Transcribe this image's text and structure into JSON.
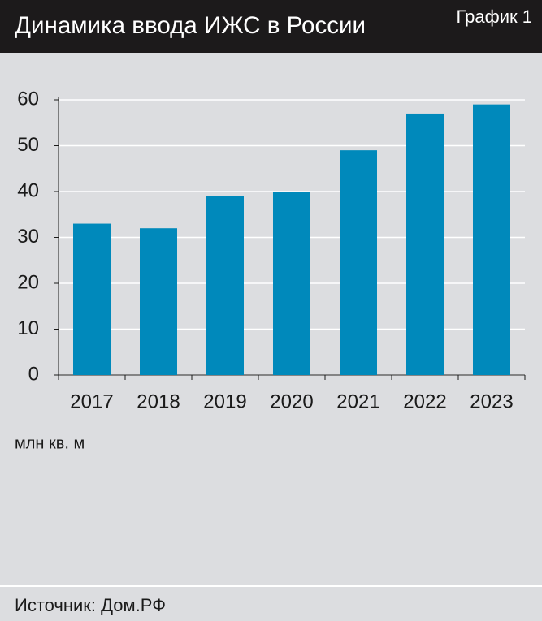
{
  "chart_data": {
    "type": "bar",
    "title": "Динамика ввода ИЖС в России",
    "label": "График 1",
    "categories": [
      "2017",
      "2018",
      "2019",
      "2020",
      "2021",
      "2022",
      "2023"
    ],
    "values": [
      33,
      32,
      39,
      40,
      49,
      57,
      59
    ],
    "color": "#0089bb",
    "ylim": [
      0,
      60
    ],
    "yticks": [
      0,
      10,
      20,
      30,
      40,
      50,
      60
    ],
    "grid": true,
    "unit": "млн кв. м",
    "source": "Источник: Дом.РФ"
  }
}
